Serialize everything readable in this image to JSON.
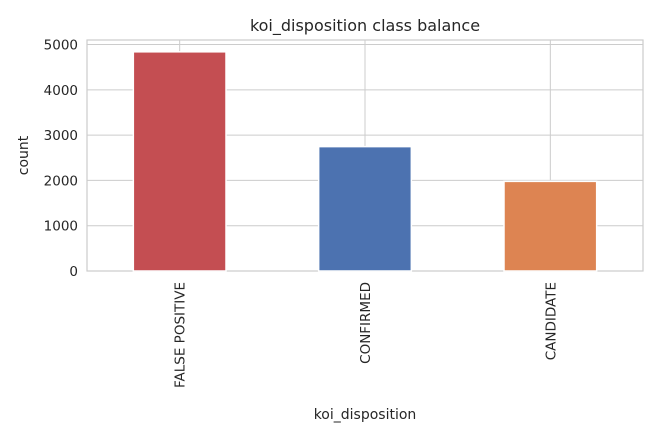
{
  "chart_data": {
    "type": "bar",
    "title": "koi_disposition class balance",
    "xlabel": "koi_disposition",
    "ylabel": "count",
    "categories": [
      "FALSE POSITIVE",
      "CONFIRMED",
      "CANDIDATE"
    ],
    "values": [
      4839,
      2746,
      1979
    ],
    "colors": [
      "#c44e52",
      "#4c72b0",
      "#dd8452"
    ],
    "ylim": [
      0,
      5100
    ],
    "yticks": [
      0,
      1000,
      2000,
      3000,
      4000,
      5000
    ],
    "grid": true,
    "legend": "none"
  }
}
